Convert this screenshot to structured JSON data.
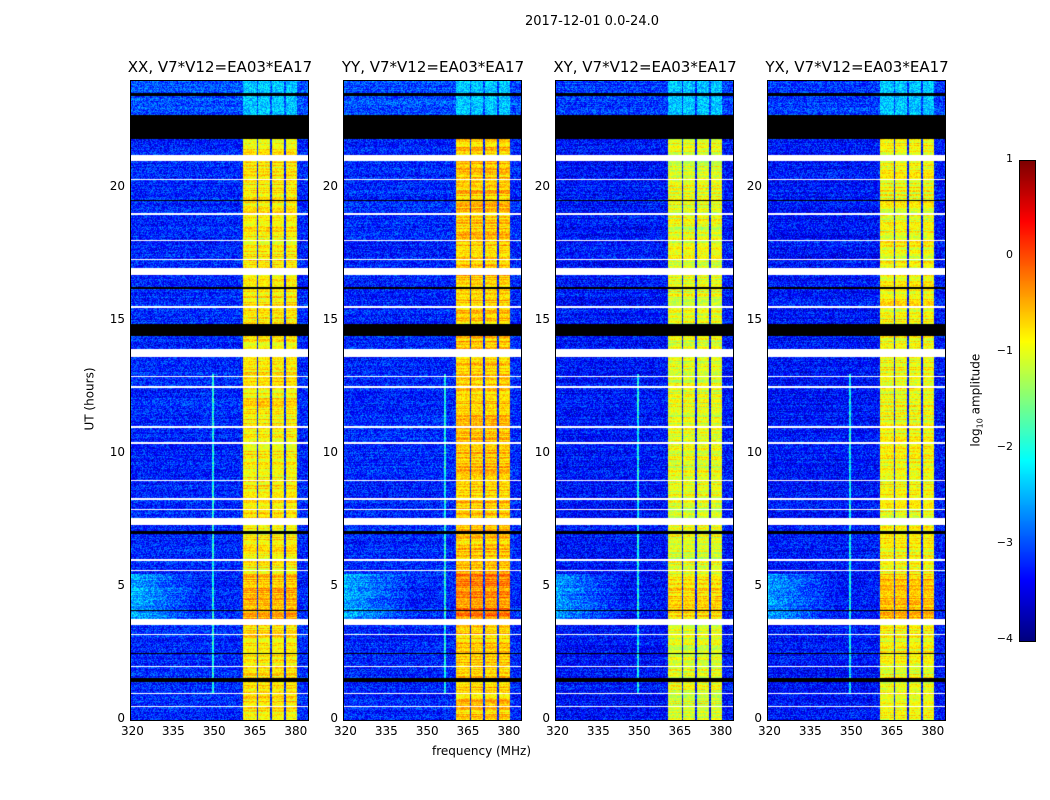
{
  "chart_data": {
    "type": "heatmap",
    "title": "2017-12-01 0.0-24.0",
    "xlabel": "frequency (MHz)",
    "ylabel": "UT (hours)",
    "xlim": [
      320,
      385
    ],
    "ylim": [
      0,
      24
    ],
    "xticks": [
      320,
      335,
      350,
      365,
      380
    ],
    "yticks": [
      0,
      5,
      10,
      15,
      20
    ],
    "colormap": "jet",
    "colorbar": {
      "label": "log",
      "label_sub": "10",
      "label_rest": " amplitude",
      "range": [
        -4,
        1
      ],
      "ticks": [
        "1",
        "0",
        "−1",
        "−2",
        "−3",
        "−4"
      ],
      "tick_values": [
        1,
        0,
        -1,
        -2,
        -3,
        -4
      ]
    },
    "panels": [
      {
        "title": "XX, V7*V12=EA03*EA17",
        "band_level": -0.8,
        "bg_level": -3.2,
        "rfi_line_mhz": 350
      },
      {
        "title": "YY, V7*V12=EA03*EA17",
        "band_level": -0.6,
        "bg_level": -3.2,
        "rfi_line_mhz": 357
      },
      {
        "title": "XY, V7*V12=EA03*EA17",
        "band_level": -1.0,
        "bg_level": -3.3,
        "rfi_line_mhz": 350
      },
      {
        "title": "YX, V7*V12=EA03*EA17",
        "band_level": -0.9,
        "bg_level": -3.3,
        "rfi_line_mhz": 350
      }
    ],
    "subbands_mhz": [
      [
        361,
        366
      ],
      [
        366.6,
        371
      ],
      [
        371.6,
        376
      ],
      [
        376.6,
        380.6
      ]
    ],
    "flagged_white_hours": [
      [
        21.0,
        21.25
      ],
      [
        16.75,
        17.0
      ],
      [
        13.65,
        13.95
      ],
      [
        7.35,
        7.6
      ],
      [
        3.6,
        3.8
      ],
      [
        5.6,
        5.65
      ],
      [
        12.5,
        12.55
      ],
      [
        10.4,
        10.45
      ],
      [
        19.0,
        19.05
      ],
      [
        20.3,
        20.35
      ],
      [
        8.3,
        8.35
      ],
      [
        2.0,
        2.05
      ],
      [
        0.5,
        0.55
      ],
      [
        17.3,
        17.35
      ],
      [
        15.5,
        15.55
      ],
      [
        6.0,
        6.05
      ],
      [
        3.2,
        3.25
      ],
      [
        9.0,
        9.05
      ],
      [
        11.0,
        11.05
      ],
      [
        18.0,
        18.05
      ],
      [
        12.9,
        12.95
      ],
      [
        7.9,
        7.95
      ],
      [
        1.0,
        1.05
      ]
    ],
    "flagged_black_hours": [
      [
        21.85,
        22.75
      ],
      [
        14.45,
        14.9
      ],
      [
        23.45,
        23.55
      ],
      [
        1.45,
        1.6
      ],
      [
        7.0,
        7.1
      ],
      [
        19.5,
        19.55
      ],
      [
        16.2,
        16.3
      ],
      [
        4.1,
        4.15
      ],
      [
        2.5,
        2.55
      ]
    ],
    "enhanced_lowfreq_hours": [
      3.8,
      5.5
    ]
  }
}
